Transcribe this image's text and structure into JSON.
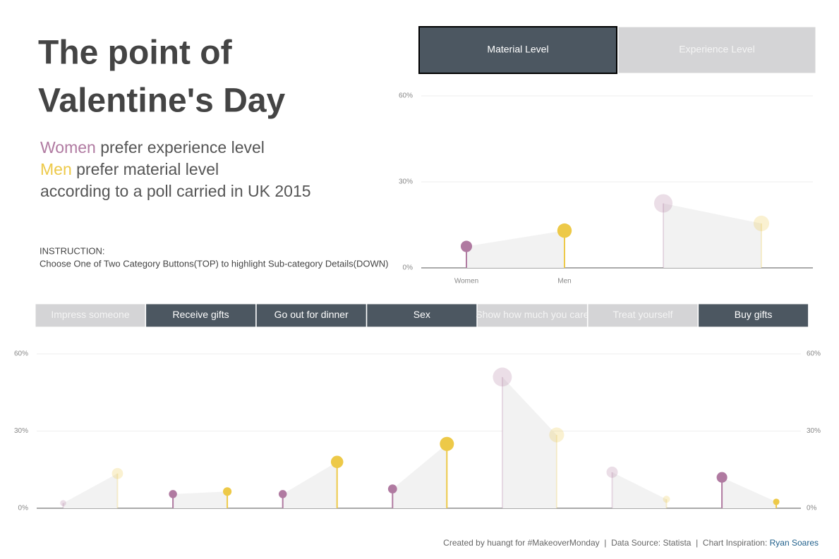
{
  "title": [
    "The point of",
    "Valentine's Day"
  ],
  "subtitle": [
    {
      "highlight": "Women",
      "text": " prefer experience level"
    },
    {
      "highlight": "Men",
      "text": " prefer material level"
    },
    {
      "text": "according to a poll carried in UK 2015"
    }
  ],
  "instruction": [
    "INSTRUCTION:",
    "Choose One of Two Category Buttons(TOP) to highlight Sub-category Details(DOWN)"
  ],
  "chart_data": [
    {
      "type": "lollipop",
      "categories": [
        "Material Level",
        "Experience Level"
      ],
      "selected": [
        true,
        false
      ],
      "series": [
        {
          "name": "Women",
          "color": "#b07aa1",
          "values": [
            7.5,
            22.5
          ]
        },
        {
          "name": "Men",
          "color": "#edc948",
          "values": [
            13,
            15.5
          ]
        }
      ],
      "ylim": [
        0,
        60
      ],
      "yticks": [
        {
          "value": 0,
          "label": "0%"
        },
        {
          "value": 30,
          "label": "30%"
        },
        {
          "value": 60,
          "label": "60%"
        }
      ],
      "grid": true
    },
    {
      "type": "lollipop",
      "categories": [
        "Impress someone",
        "Receive gifts",
        "Go out for dinner",
        "Sex",
        "Show how much you care",
        "Treat yourself",
        "Buy gifts"
      ],
      "selected": [
        false,
        true,
        true,
        true,
        false,
        false,
        true
      ],
      "series": [
        {
          "color": "#b07aa1",
          "values": [
            2,
            5.5,
            5.5,
            7.5,
            51,
            14,
            12
          ]
        },
        {
          "color": "#edc948",
          "values": [
            13.5,
            6.5,
            18,
            25,
            28.5,
            3.5,
            2.5
          ]
        }
      ],
      "ylim": [
        0,
        60
      ],
      "yticks": [
        {
          "value": 0,
          "label": "0%"
        },
        {
          "value": 30,
          "label": "30%"
        },
        {
          "value": 60,
          "label": "60%"
        }
      ],
      "grid": true
    }
  ],
  "footer": {
    "text": "Created by huangt for #MakeoverMonday  |  Data Source: Statista  |  Chart Inspiration: ",
    "link": "Ryan Soares"
  }
}
